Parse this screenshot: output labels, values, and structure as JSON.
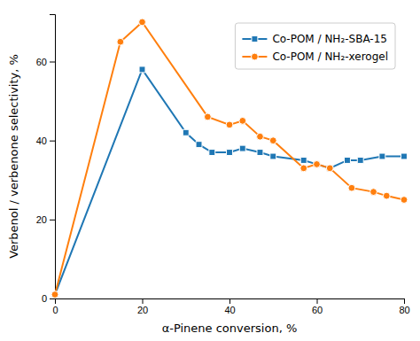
{
  "chart_data": {
    "type": "line",
    "xlabel": "α-Pinene conversion, %",
    "ylabel": "Verbenol / verbenone selectivity, %",
    "series": [
      {
        "name": "Co-POM / NH₂-SBA-15",
        "marker": "square",
        "line_style": "solid",
        "x": [
          0,
          20,
          30,
          33,
          36,
          40,
          43,
          47,
          50,
          57,
          60,
          63,
          67,
          70,
          75,
          80
        ],
        "values": [
          1,
          58,
          42,
          39,
          37,
          37,
          38,
          37,
          36,
          35,
          34,
          33,
          35,
          35,
          36,
          36
        ]
      },
      {
        "name": "Co-POM / NH₂-xerogel",
        "marker": "circle",
        "line_style": "solid",
        "x": [
          0,
          15,
          20,
          35,
          40,
          43,
          47,
          50,
          57,
          60,
          63,
          68,
          73,
          76,
          80
        ],
        "values": [
          1,
          65,
          70,
          46,
          44,
          45,
          41,
          40,
          33,
          34,
          33,
          28,
          27,
          26,
          25
        ]
      }
    ],
    "xlim": [
      0,
      80
    ],
    "ylim": [
      0,
      72
    ],
    "xticks": [
      0,
      20,
      40,
      60,
      80
    ],
    "yticks": [
      0,
      20,
      40,
      60
    ],
    "grid": false,
    "legend": "upper right"
  }
}
